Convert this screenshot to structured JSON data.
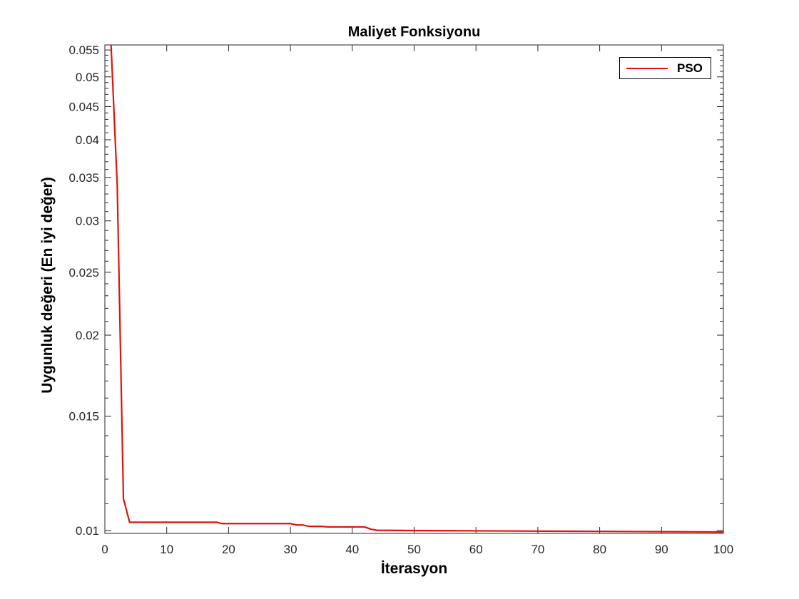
{
  "chart_data": {
    "type": "line",
    "title": "Maliyet Fonksiyonu",
    "xlabel": "İterasyon",
    "ylabel": "Uygunluk değeri (En iyi değer)",
    "xlim": [
      0,
      100
    ],
    "ylim": [
      0.0099,
      0.056
    ],
    "yscale": "log",
    "grid": false,
    "legend_location": "top-right",
    "xticks": [
      0,
      10,
      20,
      30,
      40,
      50,
      60,
      70,
      80,
      90,
      100
    ],
    "xtick_labels": [
      "0",
      "10",
      "20",
      "30",
      "40",
      "50",
      "60",
      "70",
      "80",
      "90",
      "100"
    ],
    "yticks": [
      0.01,
      0.015,
      0.02,
      0.025,
      0.03,
      0.035,
      0.04,
      0.045,
      0.05,
      0.055
    ],
    "ytick_labels": [
      "0.01",
      "0.015",
      "0.02",
      "0.025",
      "0.03",
      "0.035",
      "0.04",
      "0.045",
      "0.05",
      "0.055"
    ],
    "series": [
      {
        "name": "PSO",
        "color": "#e3120b",
        "x": [
          1,
          2,
          3,
          4,
          5,
          10,
          15,
          18,
          19,
          25,
          30,
          31,
          32,
          33,
          35,
          36,
          40,
          42,
          43,
          44,
          50,
          60,
          70,
          80,
          90,
          100
        ],
        "y": [
          0.056,
          0.034,
          0.0112,
          0.0103,
          0.0103,
          0.0103,
          0.0103,
          0.0103,
          0.01025,
          0.01025,
          0.01025,
          0.0102,
          0.0102,
          0.01015,
          0.01015,
          0.01013,
          0.01013,
          0.01013,
          0.01005,
          0.01001,
          0.01,
          0.00999,
          0.00998,
          0.00997,
          0.00996,
          0.00995
        ]
      }
    ]
  }
}
